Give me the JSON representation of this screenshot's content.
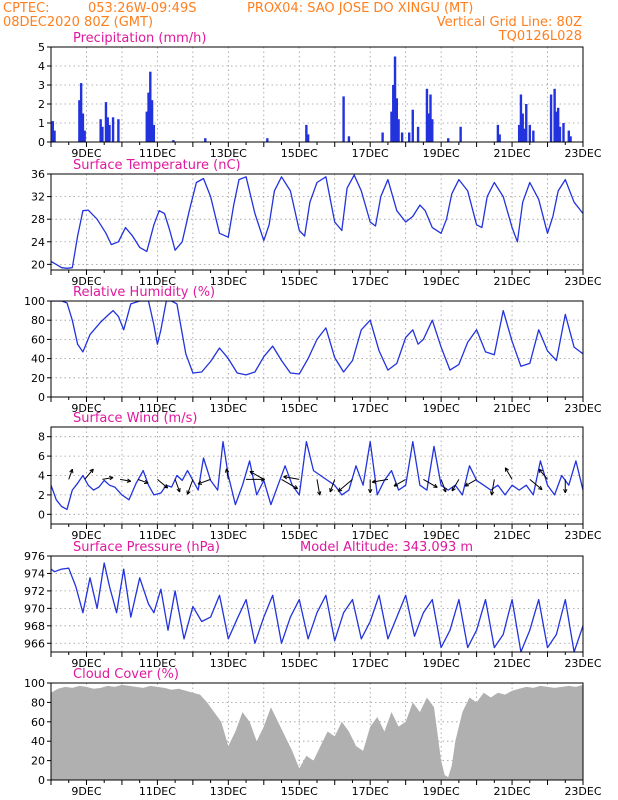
{
  "header": {
    "line1_left": "CPTEC:",
    "line1_coords": "053:26W-09:49S",
    "line1_location": "PROX04: SAO JOSE DO XINGU (MT)",
    "line2_left": "08DEC2020 80Z (GMT)",
    "line2_right": "Vertical Grid Line: 80Z",
    "line3_right": "TQ0126L028"
  },
  "colors": {
    "header": "#ff7f1f",
    "panel_title": "#e0199e",
    "series": "#2233dd",
    "cloud": "#b0b0b0",
    "grid": "#9a9a9a",
    "frame": "#000000"
  },
  "time_axis": {
    "start_day": 8,
    "end_day": 23,
    "tick_days": [
      9,
      11,
      13,
      15,
      17,
      19,
      21,
      23
    ],
    "tick_labels": [
      "9DEC",
      "11DEC",
      "13DEC",
      "15DEC",
      "17DEC",
      "19DEC",
      "21DEC",
      "23DEC"
    ]
  },
  "chart_data": [
    {
      "type": "bar",
      "title": "Precipitation (mm/h)",
      "ylim": [
        0,
        5
      ],
      "yticks": [
        0,
        1,
        2,
        3,
        4,
        5
      ],
      "grid": true,
      "x": [
        8.05,
        8.1,
        8.8,
        8.85,
        8.9,
        8.95,
        9.4,
        9.45,
        9.55,
        9.6,
        9.65,
        9.75,
        9.9,
        10.7,
        10.75,
        10.8,
        10.85,
        10.9,
        11.45,
        12.35,
        14.1,
        15.2,
        15.25,
        16.25,
        16.4,
        17.35,
        17.6,
        17.65,
        17.7,
        17.75,
        17.8,
        17.9,
        18.1,
        18.2,
        18.35,
        18.6,
        18.65,
        18.7,
        18.75,
        19.2,
        19.55,
        20.6,
        20.65,
        21.2,
        21.25,
        21.3,
        21.35,
        21.4,
        21.5,
        21.6,
        22.1,
        22.2,
        22.25,
        22.3,
        22.35,
        22.45,
        22.6,
        22.65
      ],
      "values": [
        1.1,
        0.6,
        2.2,
        3.1,
        1.5,
        0.6,
        1.2,
        0.8,
        2.1,
        1.3,
        0.9,
        1.3,
        1.2,
        1.6,
        2.6,
        3.7,
        2.2,
        0.9,
        0.1,
        0.2,
        0.2,
        0.9,
        0.4,
        2.4,
        0.3,
        0.5,
        1.6,
        3.0,
        4.5,
        2.3,
        1.2,
        0.5,
        0.5,
        1.7,
        0.8,
        2.8,
        1.5,
        2.5,
        1.2,
        0.2,
        0.8,
        0.9,
        0.4,
        0.9,
        2.5,
        1.5,
        0.7,
        2.0,
        0.9,
        0.6,
        2.5,
        2.8,
        1.6,
        1.8,
        0.8,
        1.0,
        0.6,
        0.3
      ]
    },
    {
      "type": "line",
      "title": "Surface Temperature (nC)",
      "ylim": [
        19,
        36
      ],
      "yticks": [
        20,
        24,
        28,
        32,
        36
      ],
      "grid": true,
      "x": [
        8.0,
        8.15,
        8.3,
        8.45,
        8.6,
        8.75,
        8.9,
        9.05,
        9.3,
        9.55,
        9.7,
        9.9,
        10.1,
        10.3,
        10.5,
        10.7,
        10.9,
        11.05,
        11.2,
        11.35,
        11.5,
        11.7,
        11.9,
        12.1,
        12.3,
        12.5,
        12.75,
        13.0,
        13.15,
        13.3,
        13.5,
        13.75,
        14.0,
        14.15,
        14.3,
        14.5,
        14.75,
        15.0,
        15.15,
        15.3,
        15.5,
        15.75,
        16.0,
        16.2,
        16.35,
        16.55,
        16.75,
        17.0,
        17.15,
        17.3,
        17.5,
        17.75,
        18.0,
        18.2,
        18.4,
        18.55,
        18.75,
        19.0,
        19.15,
        19.3,
        19.5,
        19.75,
        20.0,
        20.15,
        20.3,
        20.5,
        20.75,
        21.0,
        21.15,
        21.3,
        21.5,
        21.75,
        22.0,
        22.15,
        22.3,
        22.5,
        22.75,
        23.0
      ],
      "values": [
        20.5,
        20.0,
        19.4,
        19.3,
        19.4,
        25.0,
        29.5,
        29.6,
        28.0,
        25.5,
        23.5,
        24.0,
        26.5,
        25.0,
        23.0,
        22.3,
        27.0,
        29.5,
        29.0,
        26.0,
        22.5,
        24.0,
        29.5,
        34.5,
        35.2,
        32.0,
        25.5,
        24.8,
        30.5,
        35.0,
        35.5,
        29.0,
        24.2,
        27.0,
        33.0,
        35.5,
        33.0,
        26.0,
        25.0,
        31.0,
        34.5,
        35.5,
        27.5,
        26.0,
        33.5,
        35.8,
        33.0,
        27.5,
        26.8,
        32.0,
        35.0,
        29.5,
        27.5,
        28.5,
        30.5,
        29.5,
        26.5,
        25.5,
        28.0,
        32.5,
        35.0,
        33.0,
        27.0,
        26.5,
        32.0,
        34.5,
        32.0,
        26.5,
        24.0,
        31.0,
        34.5,
        31.5,
        25.5,
        28.5,
        33.0,
        35.0,
        31.0,
        29.0
      ]
    },
    {
      "type": "line",
      "title": "Relative Humidity (%)",
      "ylim": [
        0,
        100
      ],
      "yticks": [
        0,
        20,
        40,
        60,
        80,
        100
      ],
      "grid": true,
      "x": [
        8.0,
        8.3,
        8.45,
        8.6,
        8.75,
        8.9,
        9.1,
        9.4,
        9.6,
        9.75,
        9.9,
        10.05,
        10.25,
        10.5,
        10.75,
        10.9,
        11.0,
        11.1,
        11.25,
        11.4,
        11.55,
        11.8,
        12.0,
        12.25,
        12.5,
        12.75,
        13.0,
        13.25,
        13.5,
        13.75,
        14.0,
        14.25,
        14.5,
        14.75,
        15.0,
        15.25,
        15.5,
        15.75,
        16.0,
        16.25,
        16.5,
        16.75,
        17.0,
        17.25,
        17.5,
        17.75,
        18.0,
        18.2,
        18.35,
        18.5,
        18.75,
        19.0,
        19.25,
        19.5,
        19.75,
        20.0,
        20.25,
        20.5,
        20.75,
        21.0,
        21.25,
        21.5,
        21.75,
        22.0,
        22.25,
        22.5,
        22.75,
        23.0
      ],
      "values": [
        100,
        100,
        98,
        80,
        55,
        47,
        65,
        78,
        85,
        90,
        84,
        70,
        97,
        100,
        100,
        75,
        55,
        70,
        100,
        100,
        97,
        45,
        25,
        26,
        37,
        51,
        40,
        25,
        23,
        26,
        42,
        53,
        38,
        25,
        24,
        40,
        60,
        72,
        41,
        26,
        38,
        70,
        80,
        48,
        28,
        35,
        62,
        70,
        55,
        60,
        80,
        52,
        28,
        34,
        57,
        70,
        47,
        44,
        90,
        58,
        32,
        35,
        70,
        48,
        38,
        86,
        52,
        45
      ]
    },
    {
      "type": "line",
      "title": "Surface Wind (m/s)",
      "ylim": [
        -1,
        9
      ],
      "yticks": [
        0,
        2,
        4,
        6,
        8
      ],
      "grid": true,
      "x": [
        8.0,
        8.15,
        8.3,
        8.45,
        8.6,
        8.75,
        8.9,
        9.05,
        9.2,
        9.35,
        9.5,
        9.65,
        9.8,
        10.0,
        10.2,
        10.4,
        10.6,
        10.75,
        10.9,
        11.1,
        11.25,
        11.4,
        11.55,
        11.7,
        11.85,
        12.0,
        12.15,
        12.3,
        12.5,
        12.7,
        12.85,
        13.0,
        13.2,
        13.4,
        13.6,
        13.8,
        14.0,
        14.2,
        14.4,
        14.6,
        14.8,
        15.0,
        15.2,
        15.4,
        15.6,
        15.8,
        16.0,
        16.2,
        16.4,
        16.6,
        16.8,
        17.0,
        17.2,
        17.4,
        17.6,
        17.8,
        18.0,
        18.2,
        18.4,
        18.6,
        18.8,
        19.0,
        19.2,
        19.4,
        19.6,
        19.8,
        20.0,
        20.2,
        20.4,
        20.6,
        20.8,
        21.0,
        21.2,
        21.4,
        21.6,
        21.8,
        22.0,
        22.2,
        22.4,
        22.6,
        22.8,
        23.0
      ],
      "values": [
        3.0,
        1.5,
        0.8,
        0.5,
        2.5,
        3.2,
        4.0,
        3.0,
        2.5,
        2.8,
        3.5,
        3.0,
        2.8,
        2.0,
        1.5,
        3.2,
        4.5,
        3.0,
        2.0,
        2.2,
        3.0,
        2.8,
        4.0,
        3.5,
        4.5,
        3.5,
        2.5,
        5.8,
        3.5,
        2.5,
        7.5,
        4.0,
        1.0,
        3.0,
        5.5,
        2.0,
        3.5,
        1.0,
        3.0,
        5.0,
        3.0,
        2.0,
        7.5,
        4.5,
        4.0,
        3.5,
        3.0,
        2.0,
        2.5,
        5.0,
        3.0,
        7.5,
        2.0,
        3.5,
        4.5,
        2.5,
        3.0,
        7.5,
        3.0,
        2.5,
        7.0,
        3.0,
        2.5,
        3.0,
        2.0,
        5.0,
        3.5,
        3.0,
        2.5,
        3.0,
        2.0,
        3.0,
        2.5,
        3.0,
        2.0,
        5.5,
        3.0,
        2.0,
        4.0,
        3.0,
        5.5,
        2.5
      ],
      "wind_vectors": {
        "x": [
          8.5,
          8.95,
          9.45,
          9.95,
          10.45,
          11.0,
          11.5,
          12.0,
          12.5,
          13.0,
          13.5,
          14.0,
          14.5,
          15.0,
          15.5,
          16.0,
          16.5,
          17.0,
          17.5,
          18.0,
          18.5,
          19.0,
          19.5,
          20.0,
          20.5,
          21.0,
          21.5,
          22.0,
          22.5
        ],
        "direction_deg": [
          20,
          40,
          80,
          100,
          110,
          130,
          160,
          200,
          250,
          350,
          90,
          300,
          120,
          280,
          170,
          200,
          230,
          180,
          260,
          240,
          120,
          160,
          210,
          240,
          190,
          330,
          130,
          320,
          180
        ],
        "speed": [
          3,
          4,
          3,
          3,
          3,
          4,
          4,
          5,
          4,
          3,
          6,
          5,
          6,
          5,
          5,
          4,
          6,
          4,
          5,
          4,
          5,
          4,
          4,
          4,
          5,
          4,
          5,
          4,
          4
        ]
      }
    },
    {
      "type": "line",
      "title": "Surface Pressure (hPa)",
      "annotation": "Model Altitude: 343.093 m",
      "ylim": [
        965,
        976
      ],
      "yticks": [
        966,
        968,
        970,
        972,
        974,
        976
      ],
      "grid": true,
      "x": [
        8.0,
        8.1,
        8.3,
        8.5,
        8.7,
        8.9,
        9.1,
        9.3,
        9.5,
        9.65,
        9.85,
        10.05,
        10.25,
        10.5,
        10.75,
        10.9,
        11.1,
        11.3,
        11.5,
        11.75,
        12.0,
        12.25,
        12.5,
        12.75,
        13.0,
        13.25,
        13.5,
        13.75,
        14.0,
        14.25,
        14.5,
        14.75,
        15.0,
        15.25,
        15.5,
        15.75,
        16.0,
        16.25,
        16.5,
        16.75,
        17.0,
        17.25,
        17.5,
        17.75,
        18.0,
        18.25,
        18.5,
        18.75,
        19.0,
        19.25,
        19.5,
        19.75,
        20.0,
        20.25,
        20.5,
        20.75,
        21.0,
        21.25,
        21.5,
        21.75,
        22.0,
        22.25,
        22.5,
        22.75,
        23.0
      ],
      "values": [
        974.5,
        974.2,
        974.5,
        974.6,
        972.5,
        969.5,
        973.5,
        970.0,
        975.2,
        972.5,
        969.5,
        974.5,
        969.0,
        973.5,
        970.5,
        969.5,
        972.2,
        967.5,
        972.0,
        966.5,
        970.2,
        968.5,
        969.0,
        971.5,
        966.5,
        968.8,
        971.0,
        966.0,
        969.0,
        971.5,
        966.0,
        969.0,
        971.0,
        966.5,
        969.5,
        971.5,
        966.3,
        969.5,
        971.0,
        966.5,
        968.5,
        971.5,
        966.5,
        969.0,
        971.5,
        966.8,
        969.5,
        971.0,
        965.5,
        967.5,
        971.0,
        965.5,
        967.5,
        971.0,
        965.5,
        967.0,
        971.0,
        965.0,
        967.5,
        971.0,
        965.5,
        967.0,
        971.0,
        965.0,
        968.0
      ]
    },
    {
      "type": "area",
      "title": "Cloud Cover (%)",
      "ylim": [
        0,
        100
      ],
      "yticks": [
        0,
        20,
        40,
        60,
        80,
        100
      ],
      "grid": true,
      "x": [
        8.0,
        8.2,
        8.4,
        8.6,
        8.8,
        9.0,
        9.2,
        9.4,
        9.6,
        9.8,
        10.0,
        10.2,
        10.4,
        10.6,
        10.8,
        11.0,
        11.2,
        11.4,
        11.6,
        11.8,
        12.0,
        12.2,
        12.4,
        12.6,
        12.8,
        13.0,
        13.2,
        13.4,
        13.6,
        13.8,
        14.0,
        14.2,
        14.4,
        14.6,
        14.8,
        15.0,
        15.2,
        15.4,
        15.6,
        15.8,
        16.0,
        16.2,
        16.4,
        16.6,
        16.8,
        17.0,
        17.2,
        17.4,
        17.6,
        17.8,
        18.0,
        18.2,
        18.4,
        18.6,
        18.8,
        19.0,
        19.1,
        19.2,
        19.3,
        19.4,
        19.6,
        19.8,
        20.0,
        20.2,
        20.4,
        20.6,
        20.8,
        21.0,
        21.2,
        21.4,
        21.6,
        21.8,
        22.0,
        22.2,
        22.4,
        22.6,
        22.8,
        23.0
      ],
      "values": [
        90,
        94,
        96,
        95,
        97,
        96,
        94,
        95,
        97,
        96,
        98,
        97,
        96,
        95,
        97,
        96,
        95,
        93,
        94,
        92,
        90,
        88,
        80,
        70,
        60,
        35,
        50,
        70,
        60,
        40,
        55,
        75,
        60,
        45,
        30,
        12,
        25,
        20,
        35,
        50,
        45,
        60,
        50,
        35,
        30,
        55,
        65,
        50,
        70,
        55,
        60,
        80,
        70,
        85,
        75,
        20,
        5,
        3,
        15,
        40,
        70,
        85,
        80,
        90,
        85,
        90,
        88,
        92,
        94,
        96,
        95,
        97,
        96,
        95,
        96,
        97,
        96,
        98
      ]
    }
  ]
}
